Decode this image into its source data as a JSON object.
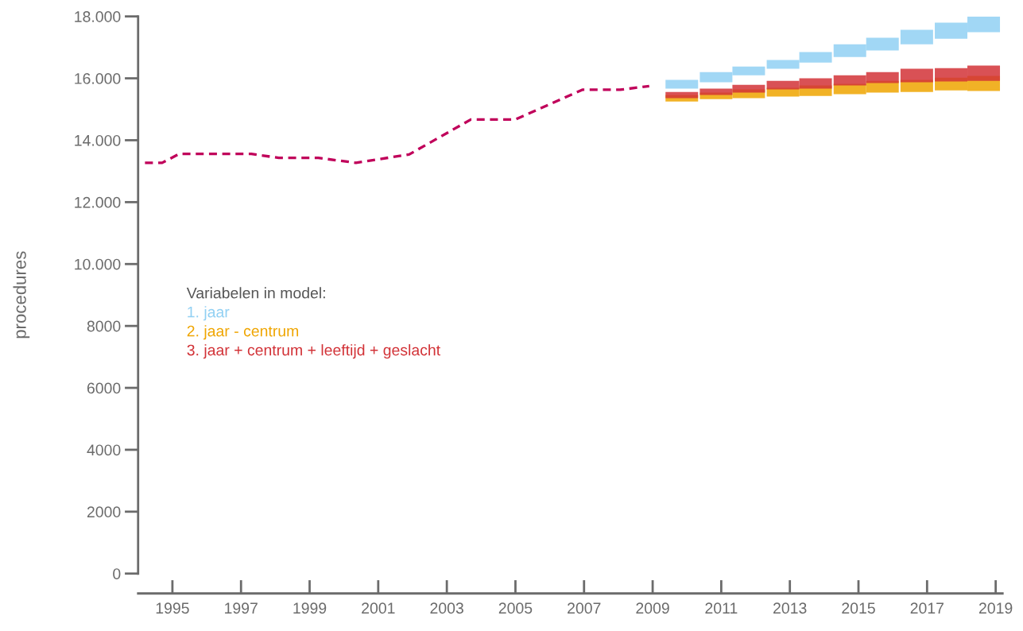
{
  "chart_data": {
    "type": "bar",
    "ylabel": "procedures",
    "legend_title": "Variabelen in model:",
    "legend": "left",
    "grid": false,
    "xlim": [
      1994,
      2019.2
    ],
    "xticks": [
      1995,
      1997,
      1999,
      2001,
      2003,
      2005,
      2007,
      2009,
      2011,
      2013,
      2015,
      2017,
      2019
    ],
    "ylim": [
      0,
      18000
    ],
    "yticks": [
      0,
      2000,
      4000,
      6000,
      8000,
      {
        "value": 10000,
        "label": "10.000"
      },
      {
        "value": 12000,
        "label": "12.000"
      },
      {
        "value": 14000,
        "label": "14.000"
      },
      {
        "value": 16000,
        "label": "16.000"
      },
      {
        "value": 18000,
        "label": "18.000"
      }
    ],
    "series": [
      {
        "type": "line",
        "line_style": "dashed",
        "color": "#c0005a",
        "x": [
          1994.2,
          1994.7,
          1995.2,
          1997.3,
          1998.1,
          1999.25,
          2000.35,
          2001.9,
          2003.7,
          2005,
          2006.95,
          2008.05,
          2008.9
        ],
        "values": [
          13270,
          13270,
          13560,
          13560,
          13430,
          13430,
          13270,
          13540,
          14670,
          14670,
          15630,
          15630,
          15750
        ]
      },
      {
        "name": "1. jaar",
        "color": "#91d0f3",
        "x": [
          2009.85,
          2010.85,
          2011.8,
          2012.8,
          2013.75,
          2014.75,
          2015.7,
          2016.7,
          2017.7,
          2018.65
        ],
        "base": [
          15670,
          15870,
          16100,
          16310,
          16510,
          16690,
          16900,
          17100,
          17280,
          17490
        ],
        "values": [
          280,
          330,
          280,
          280,
          340,
          410,
          410,
          470,
          520,
          510
        ]
      },
      {
        "name": "2. jaar - centrum",
        "color": "#efa500",
        "x": [
          2009.85,
          2010.85,
          2011.8,
          2012.8,
          2013.75,
          2014.75,
          2015.7,
          2016.7,
          2017.7,
          2018.65
        ],
        "base": [
          15250,
          15330,
          15360,
          15410,
          15430,
          15490,
          15540,
          15560,
          15610,
          15590
        ],
        "values": [
          210,
          210,
          280,
          280,
          340,
          330,
          380,
          390,
          410,
          490
        ]
      },
      {
        "name": "3. jaar + centrum + leeftijd + geslacht",
        "color": "#d23237",
        "x": [
          2009.85,
          2010.85,
          2011.8,
          2012.8,
          2013.75,
          2014.75,
          2015.7,
          2016.7,
          2017.7,
          2018.65
        ],
        "base": [
          15360,
          15460,
          15540,
          15640,
          15670,
          15770,
          15850,
          15870,
          15900,
          15920
        ],
        "values": [
          200,
          210,
          250,
          280,
          330,
          330,
          350,
          440,
          430,
          490
        ]
      }
    ]
  }
}
